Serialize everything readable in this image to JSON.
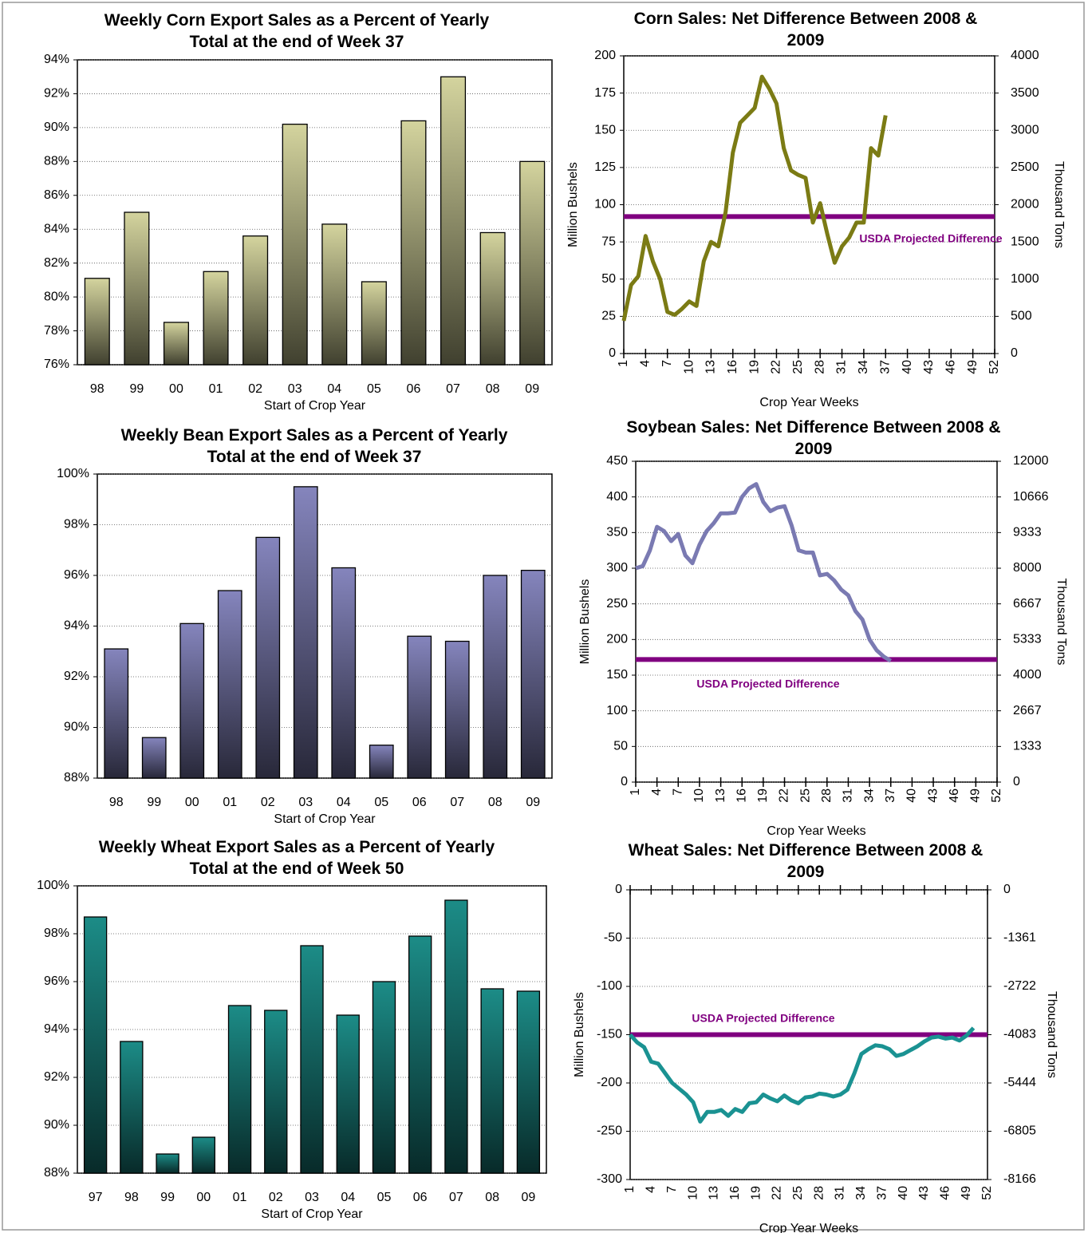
{
  "chart_data": [
    {
      "type": "bar",
      "title": "Weekly Corn Export Sales as a Percent of Yearly Total at the end of Week 37",
      "xlabel": "Start of Crop Year",
      "categories": [
        "98",
        "99",
        "00",
        "01",
        "02",
        "03",
        "04",
        "05",
        "06",
        "07",
        "08",
        "09"
      ],
      "values": [
        81.1,
        85.0,
        78.5,
        81.5,
        83.6,
        90.2,
        84.3,
        80.9,
        90.4,
        93.0,
        83.8,
        88.0
      ],
      "color": "#d4d49e",
      "ylim": [
        76,
        94
      ],
      "yticks": [
        {
          "value": 76,
          "label": "76%"
        },
        {
          "value": 78,
          "label": "78%"
        },
        {
          "value": 80,
          "label": "80%"
        },
        {
          "value": 82,
          "label": "82%"
        },
        {
          "value": 84,
          "label": "84%"
        },
        {
          "value": 86,
          "label": "86%"
        },
        {
          "value": 88,
          "label": "88%"
        },
        {
          "value": 90,
          "label": "90%"
        },
        {
          "value": 92,
          "label": "92%"
        },
        {
          "value": 94,
          "label": "94%"
        }
      ],
      "grid": true
    },
    {
      "type": "line",
      "title": "Corn Sales: Net Difference Between 2008 & 2009",
      "xlabel": "Crop Year Weeks",
      "ylabel": "Million Bushels",
      "y2label": "Thousand Tons",
      "x": [
        1,
        2,
        3,
        4,
        5,
        6,
        7,
        8,
        9,
        10,
        11,
        12,
        13,
        14,
        15,
        16,
        17,
        18,
        19,
        20,
        21,
        22,
        23,
        24,
        25,
        26,
        27,
        28,
        29,
        30,
        31,
        32,
        33,
        34,
        35,
        36,
        37
      ],
      "values": [
        22,
        46,
        52,
        79,
        62,
        50,
        28,
        26,
        30,
        35,
        32,
        62,
        75,
        72,
        95,
        135,
        155,
        160,
        165,
        186,
        178,
        168,
        138,
        123,
        120,
        118,
        88,
        101,
        80,
        61,
        72,
        78,
        88,
        88,
        138,
        133,
        160
      ],
      "color": "#7b7b14",
      "xlim": [
        1,
        52
      ],
      "xticks": [
        1,
        4,
        7,
        10,
        13,
        16,
        19,
        22,
        25,
        28,
        31,
        34,
        37,
        40,
        43,
        46,
        49,
        52
      ],
      "ylim": [
        0,
        200
      ],
      "yticks": [
        0,
        25,
        50,
        75,
        100,
        125,
        150,
        175,
        200
      ],
      "y2lim": [
        0,
        4000
      ],
      "y2ticks": [
        0,
        500,
        1000,
        1500,
        2000,
        2500,
        3000,
        3500,
        4000
      ],
      "hline": {
        "value": 92,
        "label": "USDA Projected Difference",
        "color": "#800080"
      },
      "grid": true
    },
    {
      "type": "bar",
      "title": "Weekly Bean Export Sales as a Percent of Yearly Total at the end of Week 37",
      "xlabel": "Start of Crop Year",
      "categories": [
        "98",
        "99",
        "00",
        "01",
        "02",
        "03",
        "04",
        "05",
        "06",
        "07",
        "08",
        "09"
      ],
      "values": [
        93.1,
        89.6,
        94.1,
        95.4,
        97.5,
        99.5,
        96.3,
        89.3,
        93.6,
        93.4,
        96.0,
        96.2
      ],
      "color": "#8585bd",
      "ylim": [
        88,
        100
      ],
      "yticks": [
        {
          "value": 88,
          "label": "88%"
        },
        {
          "value": 90,
          "label": "90%"
        },
        {
          "value": 92,
          "label": "92%"
        },
        {
          "value": 94,
          "label": "94%"
        },
        {
          "value": 96,
          "label": "96%"
        },
        {
          "value": 98,
          "label": "98%"
        },
        {
          "value": 100,
          "label": "100%"
        }
      ],
      "grid": true
    },
    {
      "type": "line",
      "title": "Soybean Sales:  Net Difference Between 2008 & 2009",
      "xlabel": "Crop Year Weeks",
      "ylabel": "Million Bushels",
      "y2label": "Thousand Tons",
      "x": [
        1,
        2,
        3,
        4,
        5,
        6,
        7,
        8,
        9,
        10,
        11,
        12,
        13,
        14,
        15,
        16,
        17,
        18,
        19,
        20,
        21,
        22,
        23,
        24,
        25,
        26,
        27,
        28,
        29,
        30,
        31,
        32,
        33,
        34,
        35,
        36,
        37
      ],
      "values": [
        300,
        303,
        325,
        358,
        352,
        338,
        348,
        318,
        307,
        333,
        352,
        363,
        377,
        377,
        378,
        400,
        412,
        418,
        393,
        380,
        385,
        387,
        360,
        325,
        322,
        322,
        290,
        292,
        283,
        270,
        262,
        240,
        228,
        200,
        185,
        176,
        170
      ],
      "color": "#7a7ab2",
      "xlim": [
        1,
        52
      ],
      "xticks": [
        1,
        4,
        7,
        10,
        13,
        16,
        19,
        22,
        25,
        28,
        31,
        34,
        37,
        40,
        43,
        46,
        49,
        52
      ],
      "ylim": [
        0,
        450
      ],
      "yticks": [
        0,
        50,
        100,
        150,
        200,
        250,
        300,
        350,
        400,
        450
      ],
      "y2lim": [
        0,
        12000
      ],
      "y2ticks": [
        0,
        1333,
        2667,
        4000,
        5333,
        6667,
        8000,
        9333,
        10666,
        12000
      ],
      "hline": {
        "value": 172,
        "label": "USDA Projected  Difference",
        "color": "#800080"
      },
      "grid": true
    },
    {
      "type": "bar",
      "title": "Weekly Wheat Export Sales as a Percent of Yearly Total at the end of Week 50",
      "xlabel": "Start of Crop Year",
      "categories": [
        "97",
        "98",
        "99",
        "00",
        "01",
        "02",
        "03",
        "04",
        "05",
        "06",
        "07",
        "08",
        "09"
      ],
      "values": [
        98.7,
        93.5,
        88.8,
        89.5,
        95.0,
        94.8,
        97.5,
        94.6,
        96.0,
        97.9,
        99.4,
        95.7,
        95.6
      ],
      "color": "#1c8c87",
      "ylim": [
        88,
        100
      ],
      "yticks": [
        {
          "value": 88,
          "label": "88%"
        },
        {
          "value": 90,
          "label": "90%"
        },
        {
          "value": 92,
          "label": "92%"
        },
        {
          "value": 94,
          "label": "94%"
        },
        {
          "value": 96,
          "label": "96%"
        },
        {
          "value": 98,
          "label": "98%"
        },
        {
          "value": 100,
          "label": "100%"
        }
      ],
      "grid": true
    },
    {
      "type": "line",
      "title": "Wheat Sales:  Net Difference Between 2008 & 2009",
      "xlabel": "Crop Year Weeks",
      "ylabel": "Million Bushels",
      "y2label": "Thousand Tons",
      "x": [
        1,
        2,
        3,
        4,
        5,
        6,
        7,
        8,
        9,
        10,
        11,
        12,
        13,
        14,
        15,
        16,
        17,
        18,
        19,
        20,
        21,
        22,
        23,
        24,
        25,
        26,
        27,
        28,
        29,
        30,
        31,
        32,
        33,
        34,
        35,
        36,
        37,
        38,
        39,
        40,
        41,
        42,
        43,
        44,
        45,
        46,
        47,
        48,
        49,
        50
      ],
      "values": [
        -150,
        -158,
        -163,
        -178,
        -180,
        -190,
        -200,
        -206,
        -212,
        -220,
        -240,
        -230,
        -230,
        -228,
        -234,
        -227,
        -230,
        -221,
        -220,
        -212,
        -216,
        -219,
        -213,
        -218,
        -221,
        -215,
        -214,
        -211,
        -212,
        -214,
        -212,
        -207,
        -190,
        -170,
        -165,
        -161,
        -162,
        -165,
        -172,
        -170,
        -166,
        -162,
        -157,
        -153,
        -152,
        -154,
        -153,
        -156,
        -151,
        -143
      ],
      "color": "#1a9292",
      "xlim": [
        1,
        52
      ],
      "xticks": [
        1,
        4,
        7,
        10,
        13,
        16,
        19,
        22,
        25,
        28,
        31,
        34,
        37,
        40,
        43,
        46,
        49,
        52
      ],
      "ylim": [
        -300,
        0
      ],
      "yticks": [
        -300,
        -250,
        -200,
        -150,
        -100,
        -50,
        0
      ],
      "y2lim": [
        -8166,
        0
      ],
      "y2ticks": [
        -8166,
        -6805,
        -5444,
        -4083,
        -2722,
        -1361,
        0
      ],
      "hline": {
        "value": -150,
        "label": "USDA Projected Difference",
        "color": "#800080"
      },
      "grid": true
    }
  ]
}
